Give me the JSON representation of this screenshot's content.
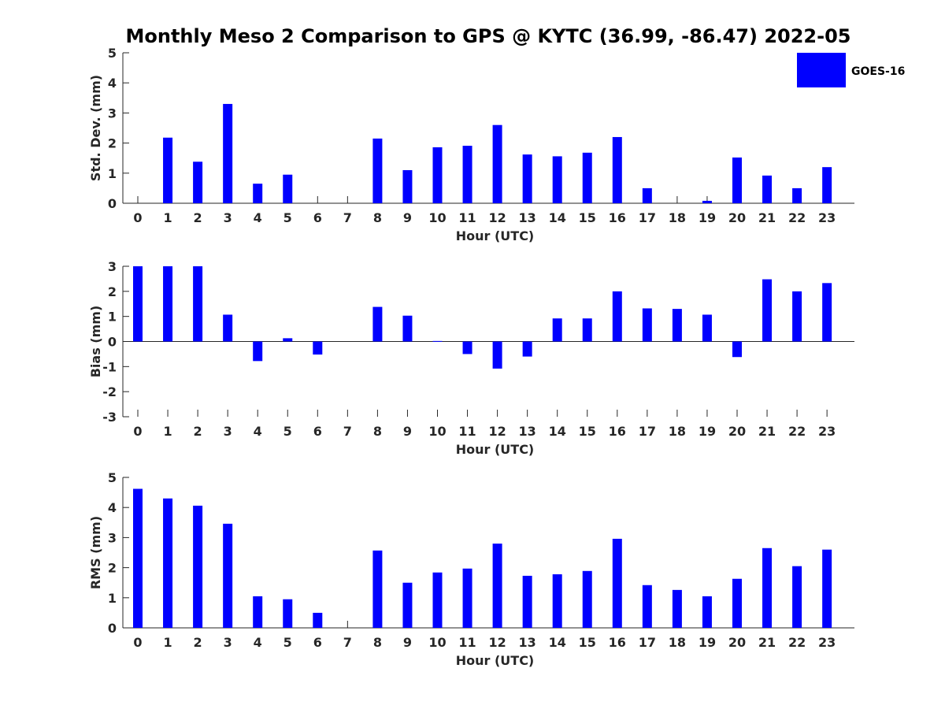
{
  "title": "Monthly Meso 2 Comparison to GPS @ KYTC (36.99, -86.47) 2022-05",
  "legend": {
    "label": "GOES-16",
    "color": "#0000ff",
    "placement": "top-right"
  },
  "chart_data": [
    {
      "type": "bar",
      "categories": [
        "0",
        "1",
        "2",
        "3",
        "4",
        "5",
        "6",
        "7",
        "8",
        "9",
        "10",
        "11",
        "12",
        "13",
        "14",
        "15",
        "16",
        "17",
        "18",
        "19",
        "20",
        "21",
        "22",
        "23"
      ],
      "series": [
        {
          "name": "GOES-16",
          "values": [
            0,
            2.18,
            1.38,
            3.3,
            0.65,
            0.95,
            0,
            0,
            2.15,
            1.1,
            1.86,
            1.91,
            2.6,
            1.62,
            1.56,
            1.68,
            2.2,
            0.5,
            0,
            0.08,
            1.52,
            0.92,
            0.5,
            1.2
          ]
        }
      ],
      "xlabel": "Hour (UTC)",
      "ylabel": "Std. Dev. (mm)",
      "ylim": [
        0,
        5
      ],
      "yticks": [
        "0",
        "1",
        "2",
        "3",
        "4",
        "5"
      ],
      "legend": "top-right"
    },
    {
      "type": "bar",
      "categories": [
        "0",
        "1",
        "2",
        "3",
        "4",
        "5",
        "6",
        "7",
        "8",
        "9",
        "10",
        "11",
        "12",
        "13",
        "14",
        "15",
        "16",
        "17",
        "18",
        "19",
        "20",
        "21",
        "22",
        "23"
      ],
      "series": [
        {
          "name": "GOES-16",
          "values": [
            3.0,
            3.0,
            3.0,
            1.07,
            -0.78,
            0.13,
            -0.52,
            0,
            1.38,
            1.03,
            0.02,
            -0.5,
            -1.08,
            -0.6,
            0.92,
            0.92,
            2.0,
            1.32,
            1.3,
            1.07,
            -0.62,
            2.48,
            2.0,
            2.33
          ]
        }
      ],
      "xlabel": "Hour (UTC)",
      "ylabel": "Bias (mm)",
      "ylim": [
        -3,
        3
      ],
      "yticks": [
        "-3",
        "-2",
        "-1",
        "0",
        "1",
        "2",
        "3"
      ]
    },
    {
      "type": "bar",
      "categories": [
        "0",
        "1",
        "2",
        "3",
        "4",
        "5",
        "6",
        "7",
        "8",
        "9",
        "10",
        "11",
        "12",
        "13",
        "14",
        "15",
        "16",
        "17",
        "18",
        "19",
        "20",
        "21",
        "22",
        "23"
      ],
      "series": [
        {
          "name": "GOES-16",
          "values": [
            4.62,
            4.3,
            4.06,
            3.46,
            1.05,
            0.95,
            0.5,
            0,
            2.57,
            1.5,
            1.84,
            1.97,
            2.8,
            1.73,
            1.78,
            1.89,
            2.96,
            1.42,
            1.26,
            1.05,
            1.63,
            2.65,
            2.05,
            2.6
          ]
        }
      ],
      "xlabel": "Hour (UTC)",
      "ylabel": "RMS (mm)",
      "ylim": [
        0,
        5
      ],
      "yticks": [
        "0",
        "1",
        "2",
        "3",
        "4",
        "5"
      ]
    }
  ]
}
